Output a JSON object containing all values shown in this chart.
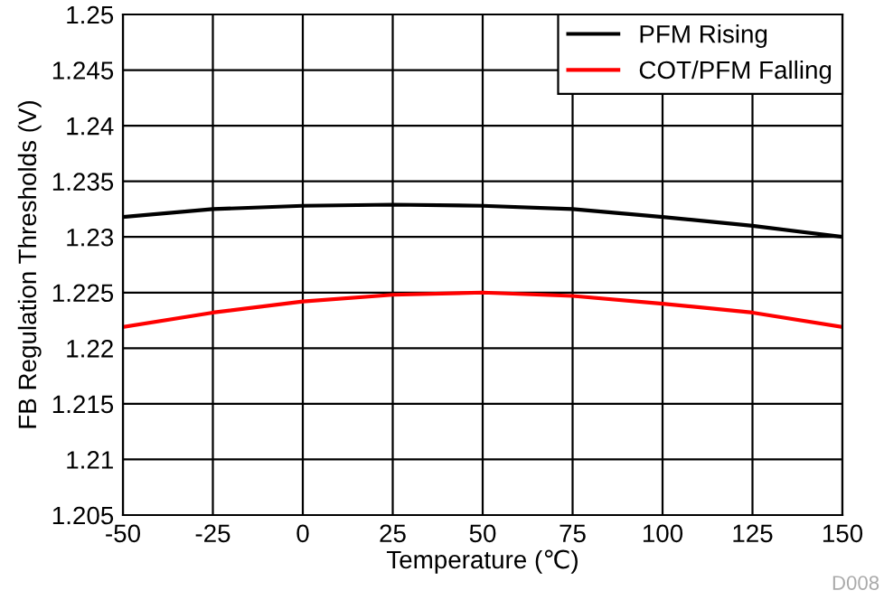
{
  "chart_data": {
    "type": "line",
    "xlabel": "Temperature (℃)",
    "ylabel": "FB Regulation Thresholds (V)",
    "x": [
      -50,
      -25,
      0,
      25,
      50,
      75,
      100,
      125,
      150
    ],
    "series": [
      {
        "name": "PFM Rising",
        "color": "#000000",
        "values": [
          1.2318,
          1.2325,
          1.2328,
          1.2329,
          1.2328,
          1.2325,
          1.2318,
          1.231,
          1.23
        ]
      },
      {
        "name": "COT/PFM Falling",
        "color": "#ff0000",
        "values": [
          1.2219,
          1.2232,
          1.2242,
          1.2248,
          1.225,
          1.2247,
          1.224,
          1.2232,
          1.2219
        ]
      }
    ],
    "xlim": [
      -50,
      150
    ],
    "xticks": [
      -50,
      -25,
      0,
      25,
      50,
      75,
      100,
      125,
      150
    ],
    "ylim": [
      1.205,
      1.25
    ],
    "yticks": [
      1.205,
      1.21,
      1.215,
      1.22,
      1.225,
      1.23,
      1.235,
      1.24,
      1.245,
      1.25
    ],
    "grid": true,
    "legend": "top right",
    "marker": "none",
    "line_style": "solid",
    "annotations": [
      "D008"
    ]
  }
}
